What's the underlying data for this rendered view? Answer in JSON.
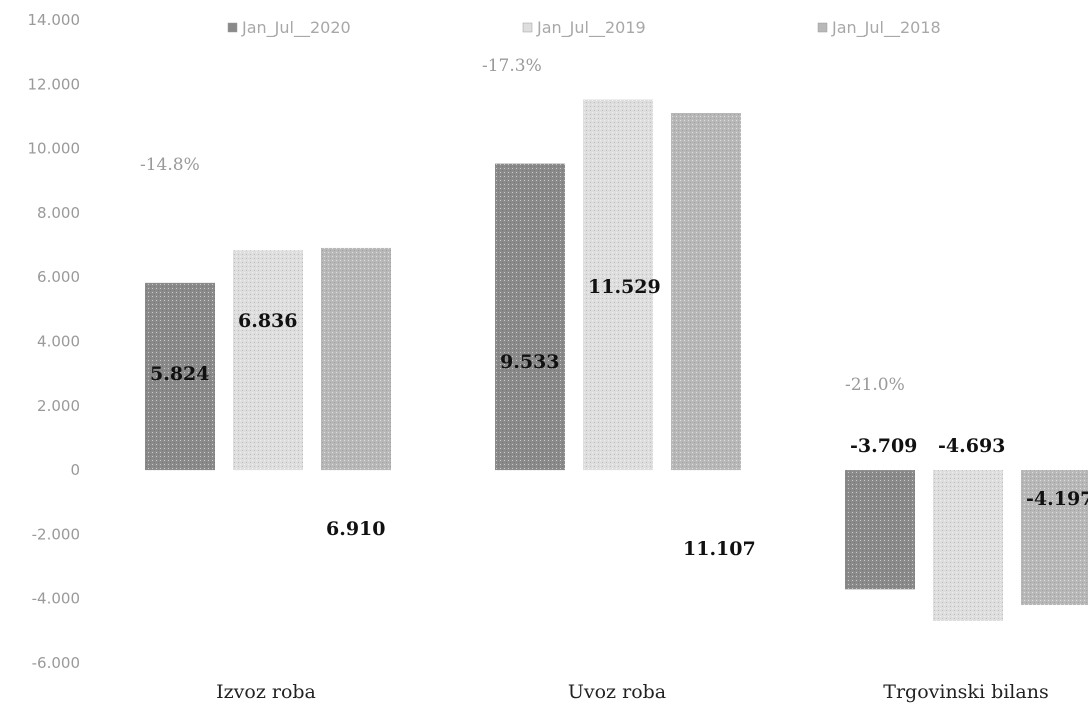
{
  "chart_data": {
    "type": "bar",
    "categories": [
      "Izvoz roba",
      "Uvoz roba",
      "Trgovinski bilans"
    ],
    "series": [
      {
        "name": "Jan_Jul__2020",
        "values": [
          5824,
          9533,
          -3709
        ],
        "labels": [
          "5.824",
          "9.533",
          "-3.709"
        ],
        "color": "#8a8a8a"
      },
      {
        "name": "Jan_Jul__2019",
        "values": [
          6836,
          11529,
          -4693
        ],
        "labels": [
          "6.836",
          "11.529",
          "-4.693"
        ],
        "color": "#dedede"
      },
      {
        "name": "Jan_Jul__2018",
        "values": [
          6910,
          11107,
          -4197
        ],
        "labels": [
          "6.910",
          "11.107",
          "-4.197"
        ],
        "color": "#b8b8b8"
      }
    ],
    "ylim": [
      -6000,
      14000
    ],
    "yticks": [
      14000,
      12000,
      10000,
      8000,
      6000,
      4000,
      2000,
      0,
      -2000,
      -4000,
      -6000
    ],
    "ytick_labels": [
      "14.000",
      "12.000",
      "10.000",
      "8.000",
      "6.000",
      "4.000",
      "2.000",
      "0",
      "-2.000",
      "-4.000",
      "-6.000"
    ],
    "annotations": [
      "-14.8%",
      "-17.3%",
      "-21.0%"
    ],
    "legend_position": "top",
    "grid": false
  }
}
